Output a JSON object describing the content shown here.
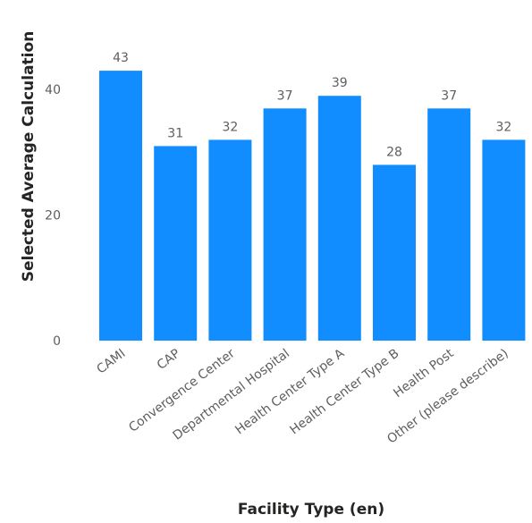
{
  "chart_data": {
    "type": "bar",
    "xlabel": "Facility Type (en)",
    "ylabel": "Selected Average Calculation",
    "categories": [
      "CAMI",
      "CAP",
      "Convergence Center",
      "Departmental Hospital",
      "Health Center Type A",
      "Health Center Type B",
      "Health Post",
      "Other (please describe)"
    ],
    "values": [
      43,
      31,
      32,
      37,
      39,
      28,
      37,
      32
    ],
    "value_labels": [
      "43",
      "31",
      "32",
      "37",
      "39",
      "28",
      "37",
      "32"
    ],
    "yticks": [
      "0",
      "20",
      "40"
    ],
    "ytick_values": [
      0,
      20,
      40
    ],
    "ylim": [
      0,
      50
    ],
    "grid": false,
    "bar_color": "#118DFF"
  }
}
